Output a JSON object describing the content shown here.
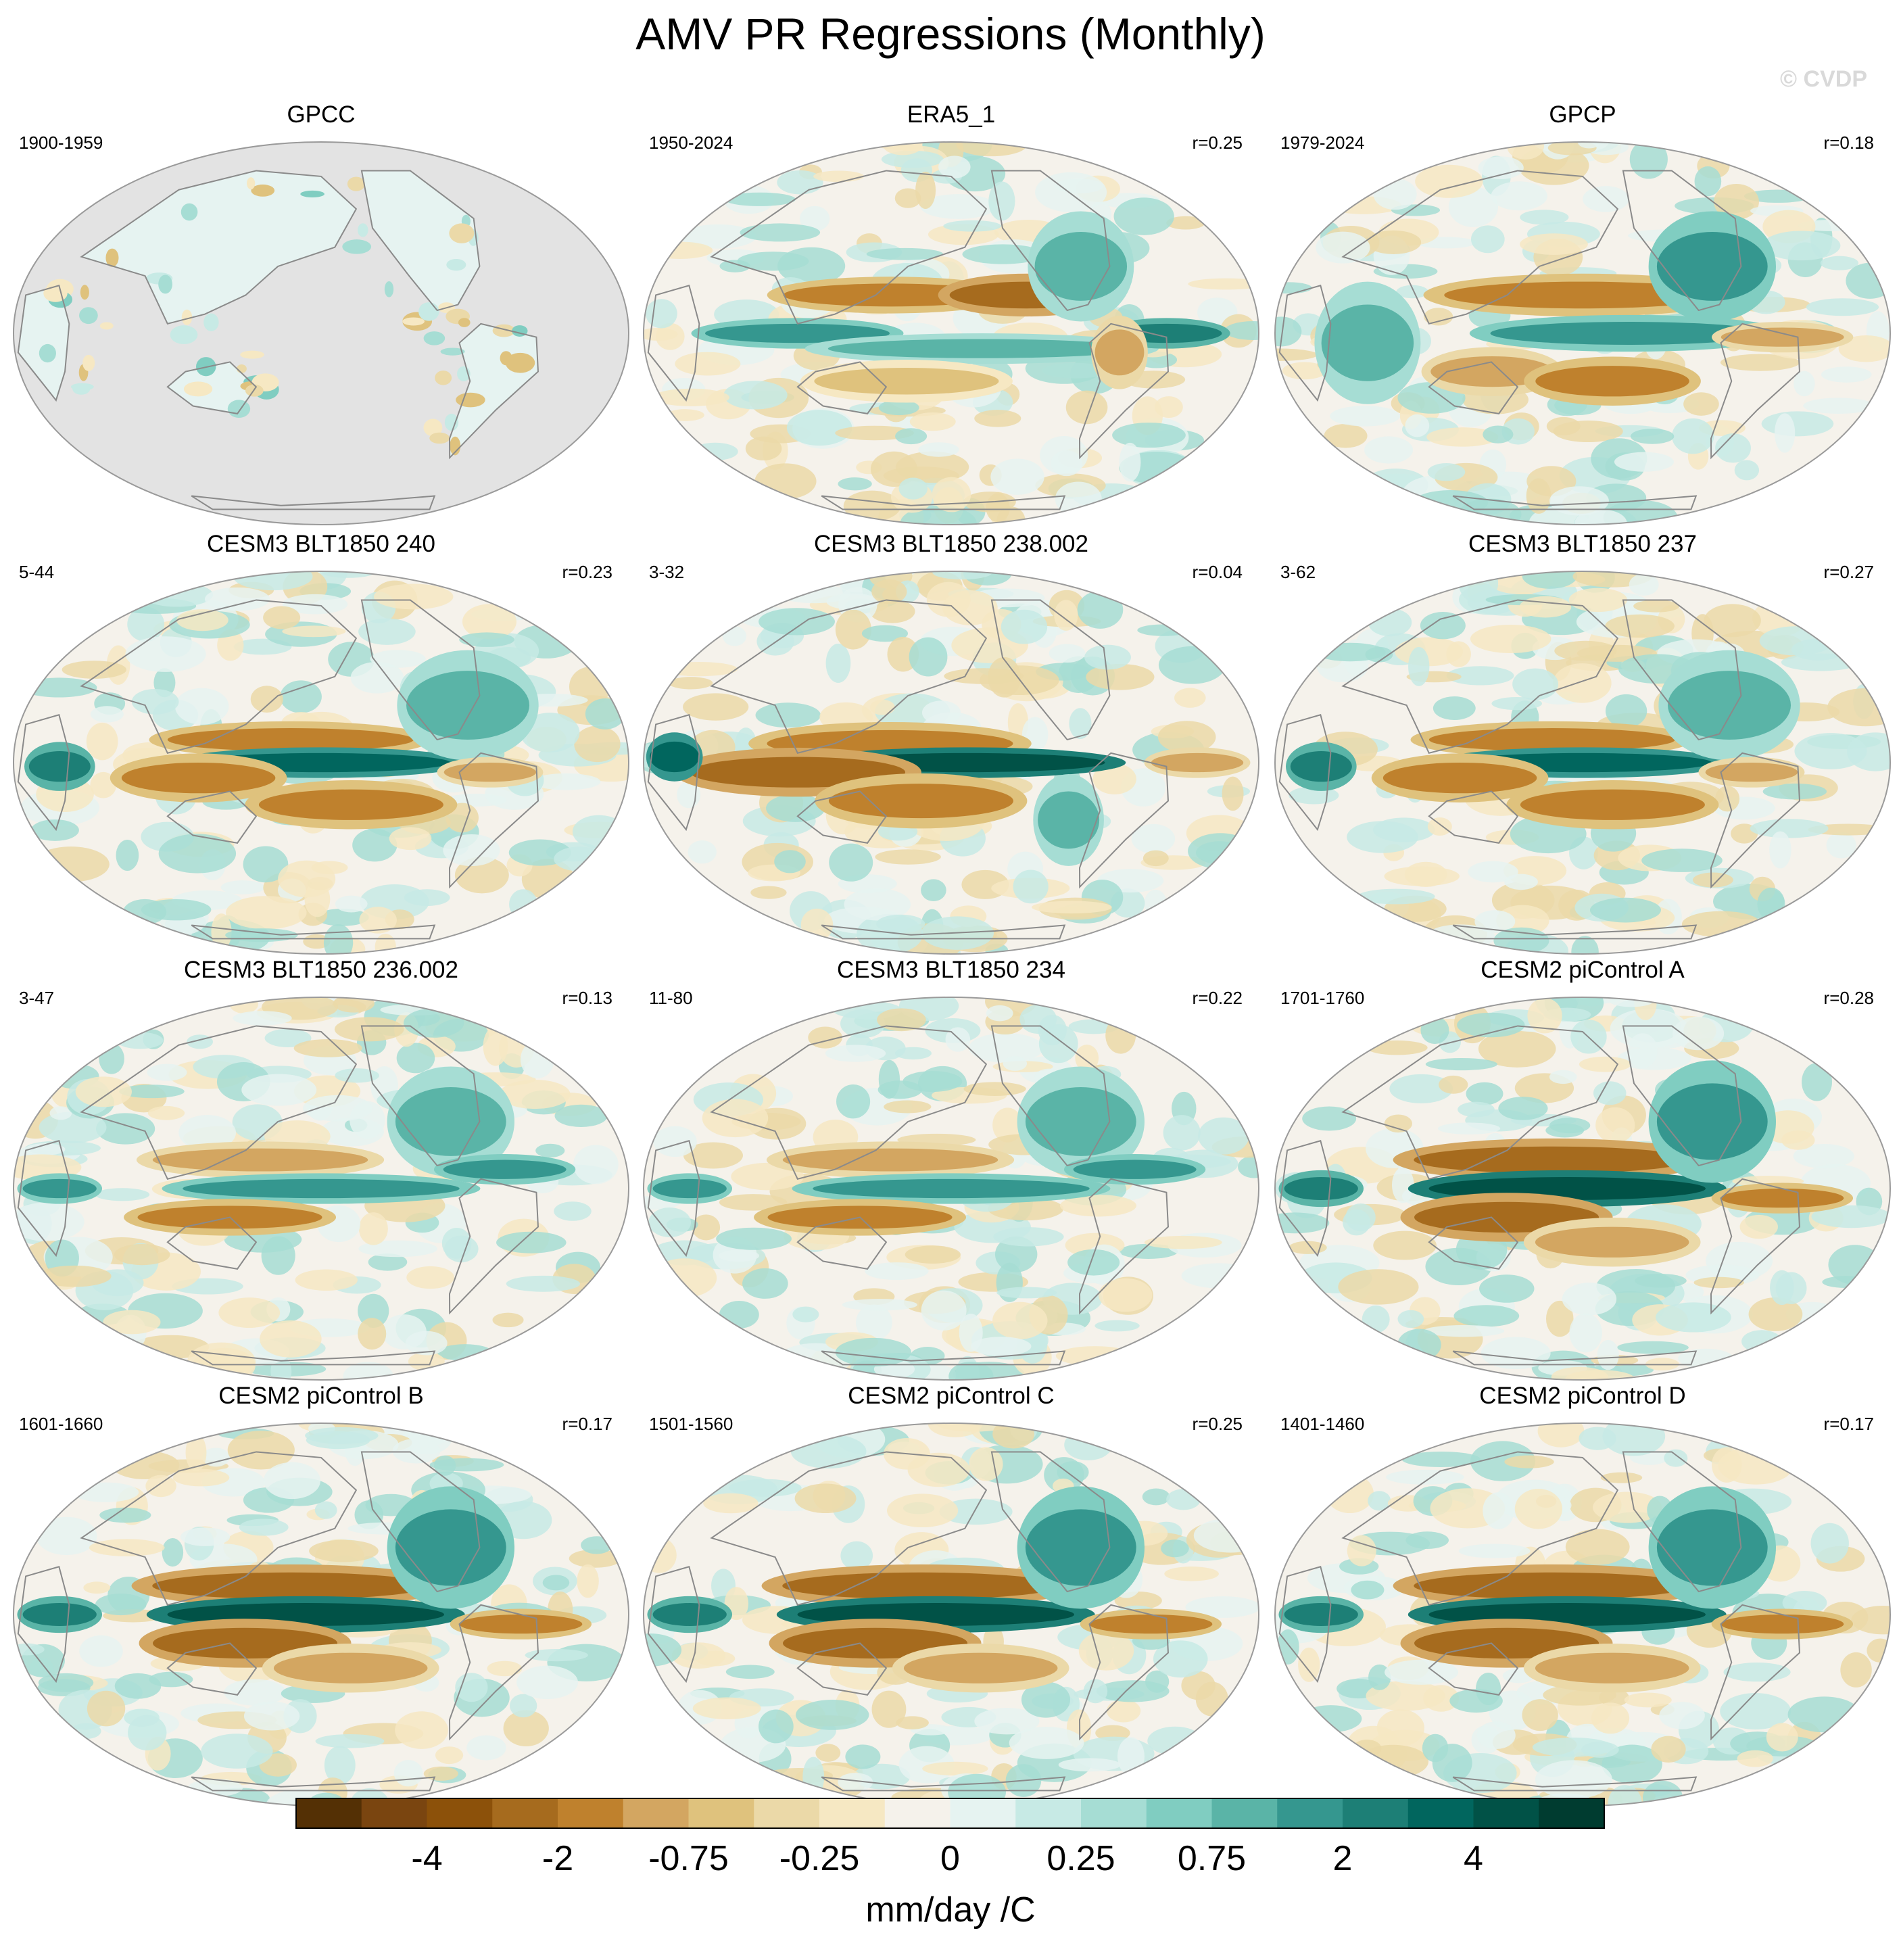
{
  "title": "AMV PR Regressions (Monthly)",
  "watermark": "© CVDP",
  "panels": [
    {
      "title": "GPCC",
      "years": "1900-1959",
      "corr": "",
      "pattern": "obs_land"
    },
    {
      "title": "ERA5_1",
      "years": "1950-2024",
      "corr": "r=0.25",
      "pattern": "a"
    },
    {
      "title": "GPCP",
      "years": "1979-2024",
      "corr": "r=0.18",
      "pattern": "b"
    },
    {
      "title": "CESM3 BLT1850 240",
      "years": "5-44",
      "corr": "r=0.23",
      "pattern": "c"
    },
    {
      "title": "CESM3 BLT1850 238.002",
      "years": "3-32",
      "corr": "r=0.04",
      "pattern": "d"
    },
    {
      "title": "CESM3 BLT1850 237",
      "years": "3-62",
      "corr": "r=0.27",
      "pattern": "c"
    },
    {
      "title": "CESM3 BLT1850 236.002",
      "years": "3-47",
      "corr": "r=0.13",
      "pattern": "e"
    },
    {
      "title": "CESM3 BLT1850 234",
      "years": "11-80",
      "corr": "r=0.22",
      "pattern": "e"
    },
    {
      "title": "CESM2 piControl A",
      "years": "1701-1760",
      "corr": "r=0.28",
      "pattern": "f"
    },
    {
      "title": "CESM2 piControl B",
      "years": "1601-1660",
      "corr": "r=0.17",
      "pattern": "f"
    },
    {
      "title": "CESM2 piControl C",
      "years": "1501-1560",
      "corr": "r=0.25",
      "pattern": "f"
    },
    {
      "title": "CESM2 piControl D",
      "years": "1401-1460",
      "corr": "r=0.17",
      "pattern": "f"
    }
  ],
  "colorbar": {
    "unit": "mm/day /C",
    "colors": [
      "#543005",
      "#7a4510",
      "#8c510a",
      "#a66b1e",
      "#bf812d",
      "#d3a661",
      "#dfc27d",
      "#ebd9a8",
      "#f6e8c3",
      "#f5f2eb",
      "#e6f3f1",
      "#c7eae5",
      "#a6ddd4",
      "#80cdc1",
      "#5ab4a7",
      "#35978f",
      "#1d7f76",
      "#01665e",
      "#015247",
      "#003c30"
    ],
    "tick_labels": [
      "-4",
      "-2",
      "-0.75",
      "-0.25",
      "0",
      "0.25",
      "0.75",
      "2",
      "4"
    ],
    "tick_boundaries": [
      2,
      4,
      6,
      8,
      10,
      12,
      14,
      16,
      18
    ]
  },
  "map_colors": {
    "missing": "#e3e3e3",
    "coast": "#8a8a8a",
    "frame": "#9a9a9a"
  }
}
